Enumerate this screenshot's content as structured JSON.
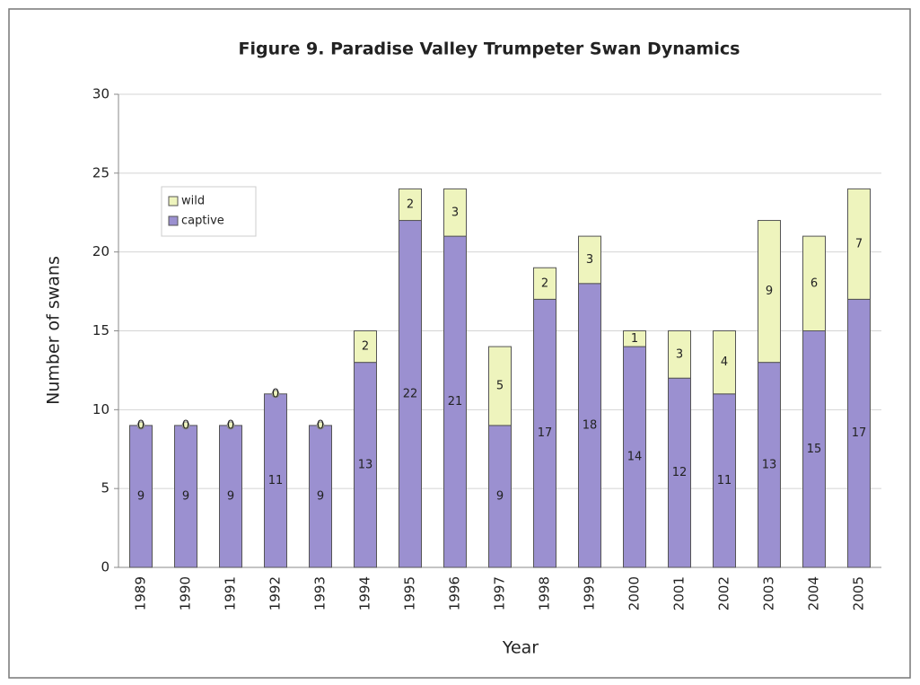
{
  "chart_data": {
    "type": "stacked_bar",
    "title": "Figure 9. Paradise Valley Trumpeter Swan Dynamics",
    "x_label": "Year",
    "y_label": "Number of swans",
    "categories": [
      "1989",
      "1990",
      "1991",
      "1992",
      "1993",
      "1994",
      "1995",
      "1996",
      "1997",
      "1998",
      "1999",
      "2000",
      "2001",
      "2002",
      "2003",
      "2004",
      "2005"
    ],
    "series": [
      {
        "name": "captive",
        "color": "#9b90d0",
        "values": [
          9,
          9,
          9,
          11,
          9,
          13,
          22,
          21,
          9,
          17,
          18,
          14,
          12,
          11,
          13,
          15,
          17
        ]
      },
      {
        "name": "wild",
        "color": "#eef4bd",
        "values": [
          0,
          0,
          0,
          0,
          0,
          2,
          2,
          3,
          5,
          2,
          3,
          1,
          3,
          4,
          9,
          6,
          7
        ]
      }
    ],
    "ylim": [
      0,
      30
    ],
    "yticks": [
      0,
      5,
      10,
      15,
      20,
      25,
      30
    ],
    "grid": true,
    "legend": "upper left"
  }
}
